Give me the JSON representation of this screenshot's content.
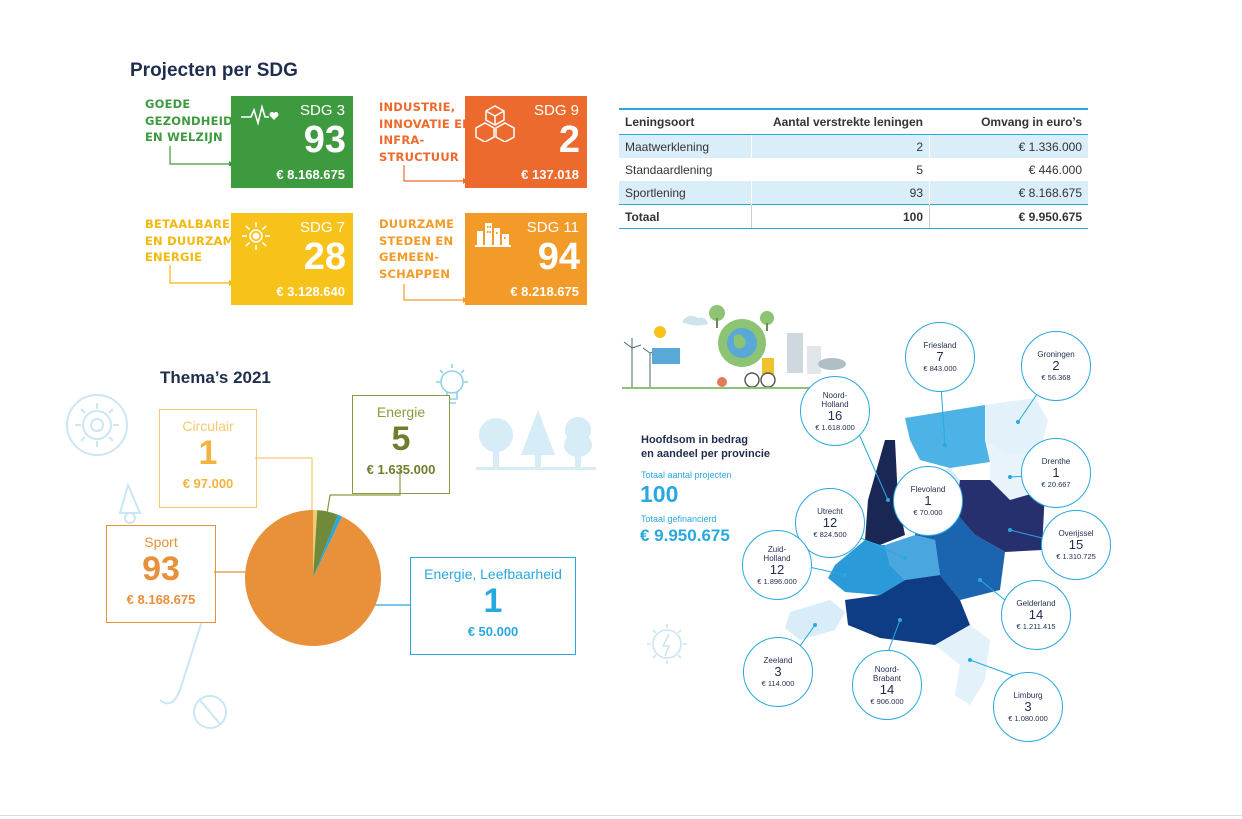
{
  "sdg_section": {
    "title": "Projecten per SDG",
    "items": [
      {
        "label_lines": [
          "GOEDE",
          "GEZONDHEID",
          "EN WELZIJN"
        ],
        "code": "SDG 3",
        "count": "93",
        "amount": "€ 8.168.675",
        "color": "#3d9a3f",
        "icon": "heartbeat-icon"
      },
      {
        "label_lines": [
          "INDUSTRIE,",
          "INNOVATIE EN",
          "INFRA-",
          "STRUCTUUR"
        ],
        "code": "SDG 9",
        "count": "2",
        "amount": "€ 137.018",
        "color": "#ec6a2d",
        "icon": "cubes-icon"
      },
      {
        "label_lines": [
          "BETAALBARE",
          "EN DUURZAME",
          "ENERGIE"
        ],
        "code": "SDG 7",
        "count": "28",
        "amount": "€ 3.128.640",
        "color": "#f7c31b",
        "icon": "sun-icon"
      },
      {
        "label_lines": [
          "DUURZAME",
          "STEDEN EN",
          "GEMEEN-",
          "SCHAPPEN"
        ],
        "code": "SDG 11",
        "count": "94",
        "amount": "€  8.218.675",
        "color": "#f29b29",
        "icon": "city-icon"
      }
    ]
  },
  "loans_table": {
    "headers": [
      "Leningsoort",
      "Aantal verstrekte leningen",
      "Omvang in euro’s"
    ],
    "rows": [
      [
        "Maatwerklening",
        "2",
        "€ 1.336.000"
      ],
      [
        "Standaardlening",
        "5",
        "€ 446.000"
      ],
      [
        "Sportlening",
        "93",
        "€ 8.168.675"
      ]
    ],
    "total": [
      "Totaal",
      "100",
      "€ 9.950.675"
    ]
  },
  "themes": {
    "title": "Thema’s 2021",
    "items": [
      {
        "label": "Circulair",
        "count": "1",
        "amount": "€ 97.000",
        "color": "#f3c970"
      },
      {
        "label": "Energie",
        "count": "5",
        "amount": "€ 1.635.000",
        "color": "#8a9a3c"
      },
      {
        "label": "Sport",
        "count": "93",
        "amount": "€ 8.168.675",
        "color": "#e8913a"
      },
      {
        "label": "Energie, Leefbaarheid",
        "count": "1",
        "amount": "€ 50.000",
        "color": "#29a8e0"
      }
    ]
  },
  "chart_data": {
    "type": "pie",
    "title": "Thema’s 2021",
    "categories": [
      "Sport",
      "Circulair",
      "Energie",
      "Energie, Leefbaarheid"
    ],
    "values": [
      93,
      1,
      5,
      1
    ],
    "amounts": [
      "€ 8.168.675",
      "€ 97.000",
      "€ 1.635.000",
      "€ 50.000"
    ],
    "colors": [
      "#e8913a",
      "#f3c970",
      "#6f8a3a",
      "#29a8e0"
    ]
  },
  "map": {
    "heading_line1": "Hoofdsom in bedrag",
    "heading_line2": "en aandeel per provincie",
    "projects_label": "Totaal aantal projecten",
    "projects_value": "100",
    "financed_label": "Totaal gefinancierd",
    "financed_value": "€ 9.950.675",
    "provinces": [
      {
        "name": "Friesland",
        "count": "7",
        "amount": "€ 843.000"
      },
      {
        "name": "Groningen",
        "count": "2",
        "amount": "€ 56.368"
      },
      {
        "name": "Noord-\nHolland",
        "count": "16",
        "amount": "€ 1.618.000"
      },
      {
        "name": "Drenthe",
        "count": "1",
        "amount": "€ 20.667"
      },
      {
        "name": "Flevoland",
        "count": "1",
        "amount": "€ 70.000"
      },
      {
        "name": "Utrecht",
        "count": "12",
        "amount": "€ 824.500"
      },
      {
        "name": "Overijssel",
        "count": "15",
        "amount": "€ 1.310.725"
      },
      {
        "name": "Zuid-\nHolland",
        "count": "12",
        "amount": "€ 1.896.000"
      },
      {
        "name": "Gelderland",
        "count": "14",
        "amount": "€ 1.211.415"
      },
      {
        "name": "Zeeland",
        "count": "3",
        "amount": "€ 114.000"
      },
      {
        "name": "Noord-\nBrabant",
        "count": "14",
        "amount": "€ 906.000"
      },
      {
        "name": "Limburg",
        "count": "3",
        "amount": "€ 1.080.000"
      }
    ]
  }
}
